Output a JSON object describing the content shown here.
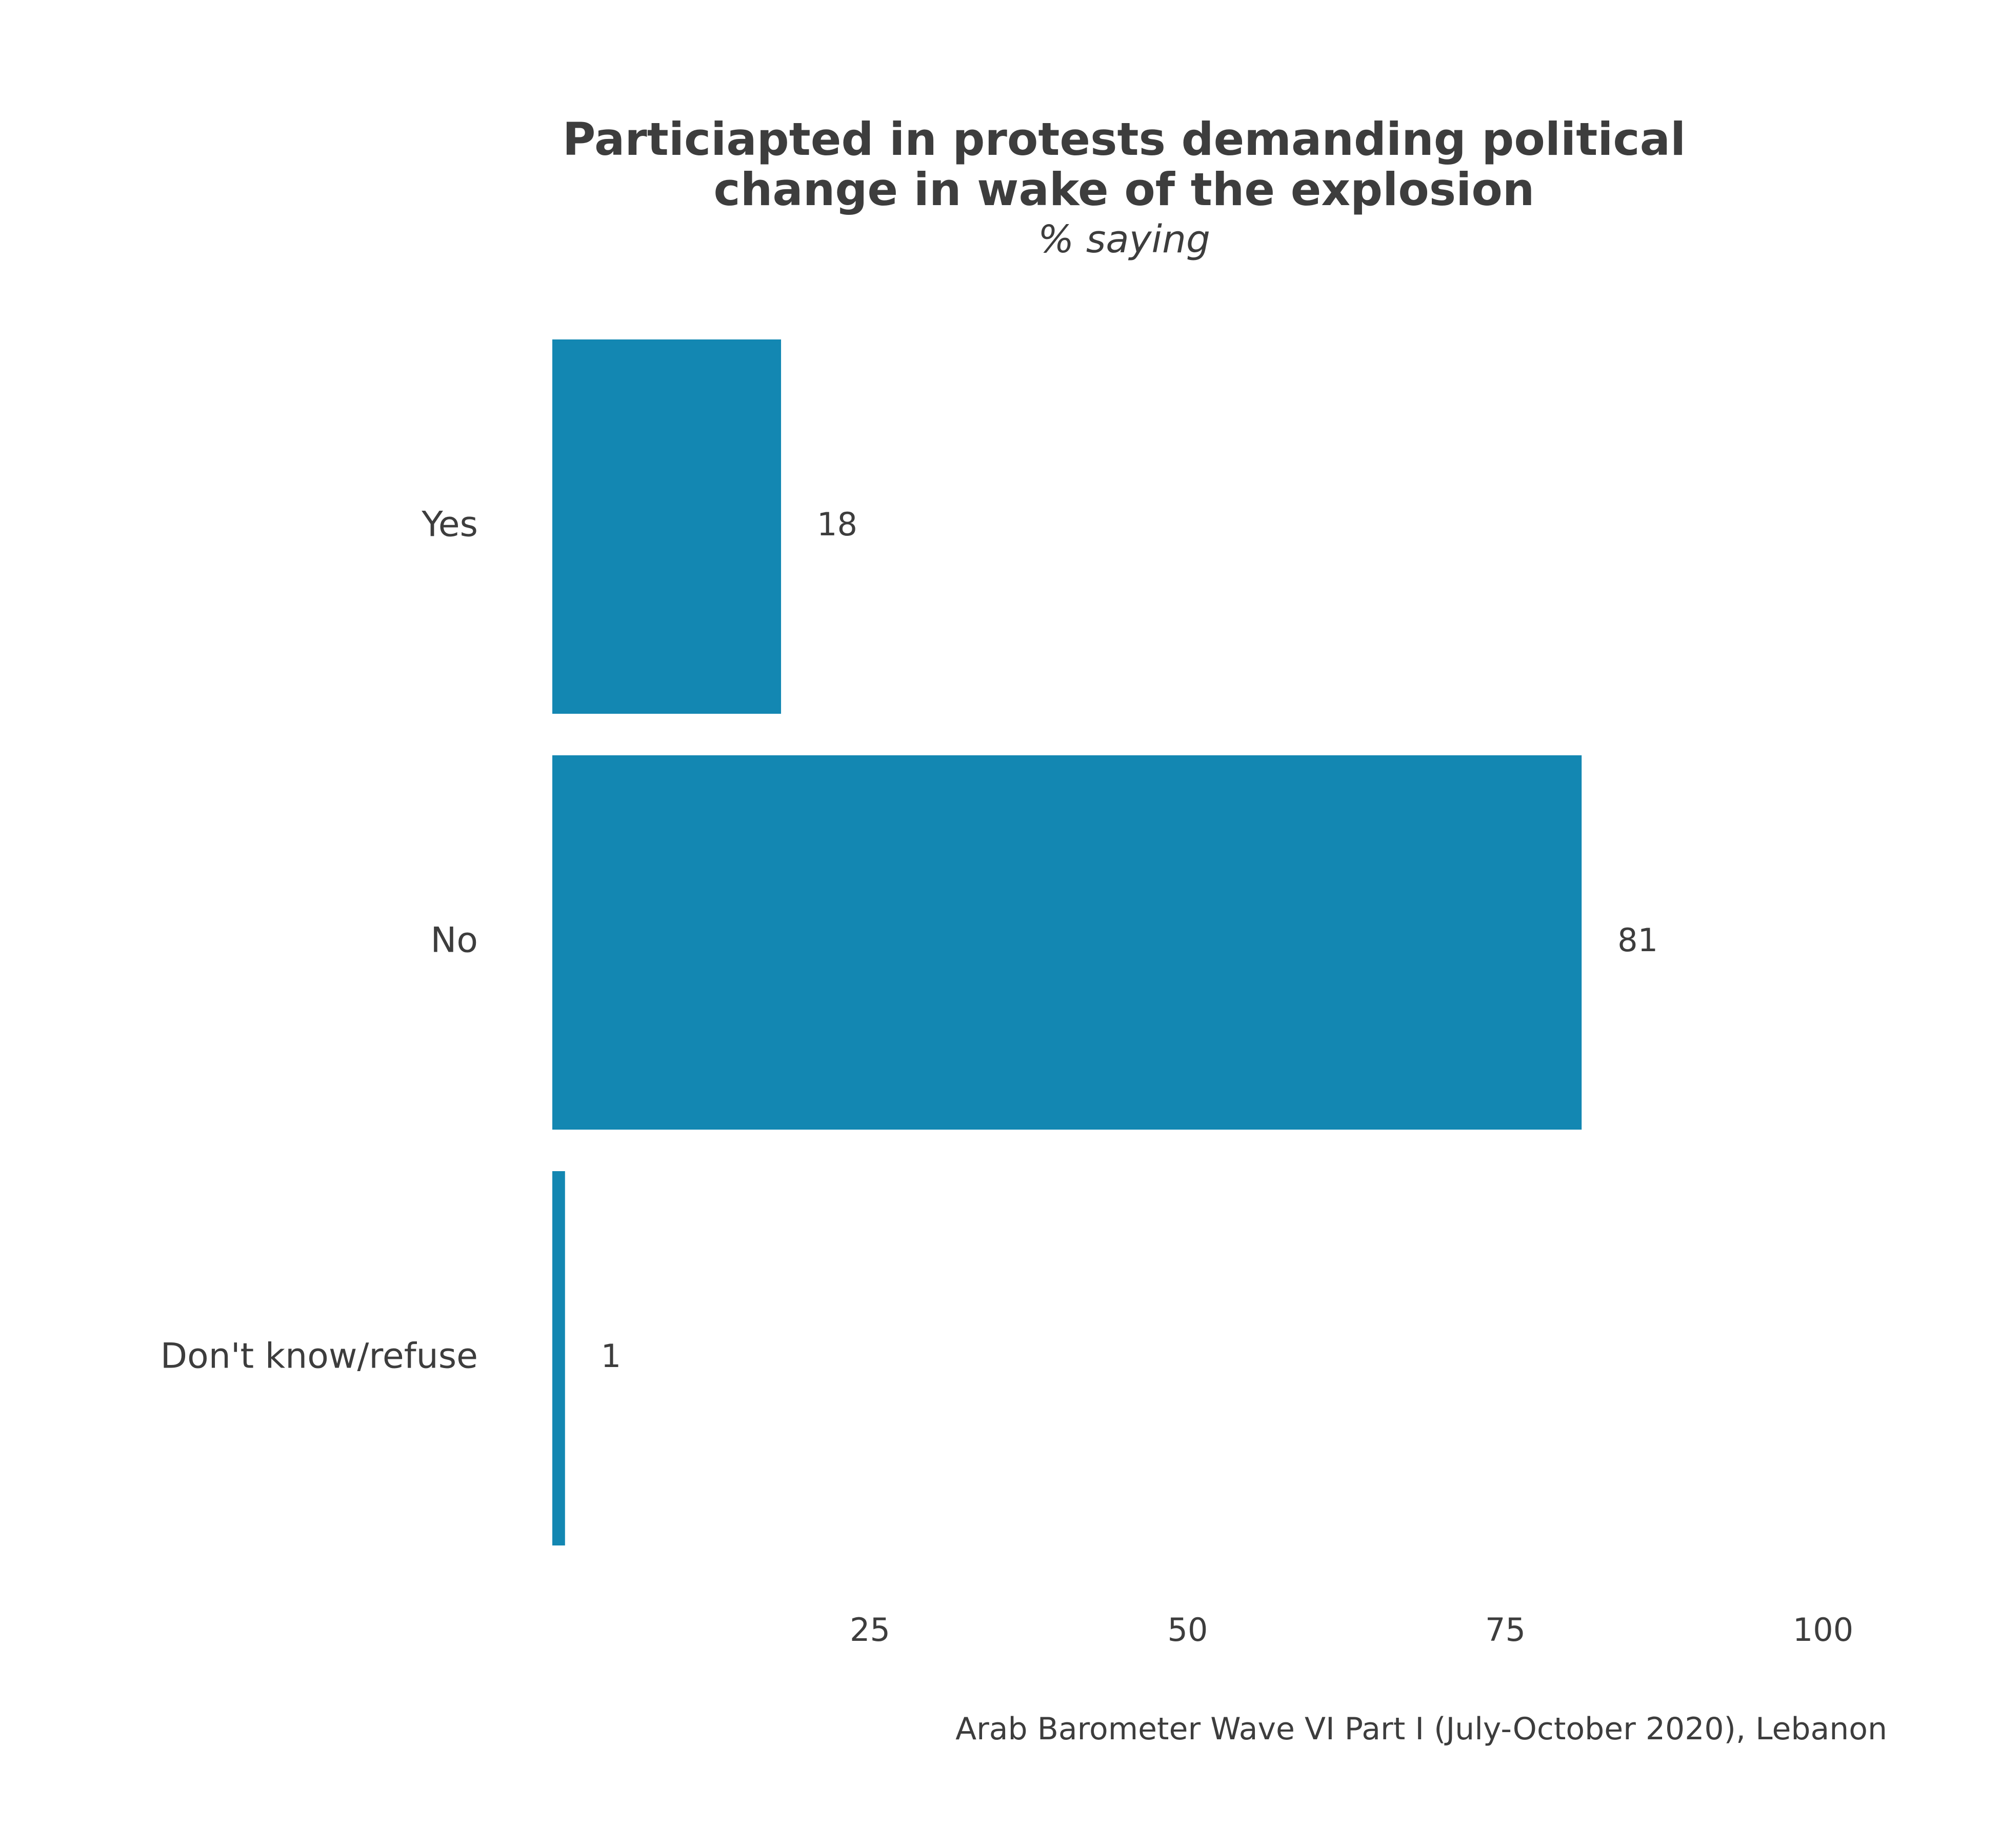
{
  "chart_data": {
    "type": "bar",
    "orientation": "horizontal",
    "title_lines": [
      "Particiapted in protests demanding political",
      "change in wake of the explosion"
    ],
    "subtitle": "% saying",
    "categories": [
      "Yes",
      "No",
      "Don't know/refuse"
    ],
    "values": [
      18,
      81,
      1
    ],
    "value_labels": [
      "18",
      "81",
      "1"
    ],
    "xlim": [
      0,
      100
    ],
    "x_ticks": [
      25,
      50,
      75,
      100
    ],
    "x_tick_labels": [
      "25",
      "50",
      "75",
      "100"
    ],
    "grid": false,
    "legend": "none",
    "bar_color": "#1387b2",
    "caption": "Arab Barometer Wave VI Part I (July-October 2020), Lebanon"
  }
}
